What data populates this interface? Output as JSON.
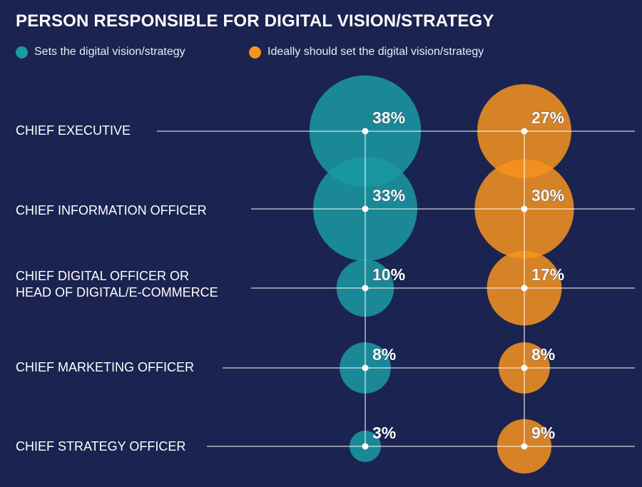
{
  "chart_data": {
    "type": "bubble",
    "title": "PERSON RESPONSIBLE FOR DIGITAL VISION/STRATEGY",
    "legend_position": "top-left",
    "series": [
      {
        "name": "Sets the digital vision/strategy",
        "color": "#1a9aa2",
        "values": [
          38,
          33,
          10,
          8,
          3
        ]
      },
      {
        "name": "Ideally should set the digital vision/strategy",
        "color": "#f7931e",
        "values": [
          27,
          30,
          17,
          8,
          9
        ]
      }
    ],
    "categories": [
      [
        "CHIEF EXECUTIVE"
      ],
      [
        "CHIEF INFORMATION OFFICER"
      ],
      [
        "CHIEF DIGITAL OFFICER OR",
        "HEAD OF DIGITAL/E-COMMERCE"
      ],
      [
        "CHIEF MARKETING OFFICER"
      ],
      [
        "CHIEF STRATEGY OFFICER"
      ]
    ],
    "value_suffix": "%"
  }
}
